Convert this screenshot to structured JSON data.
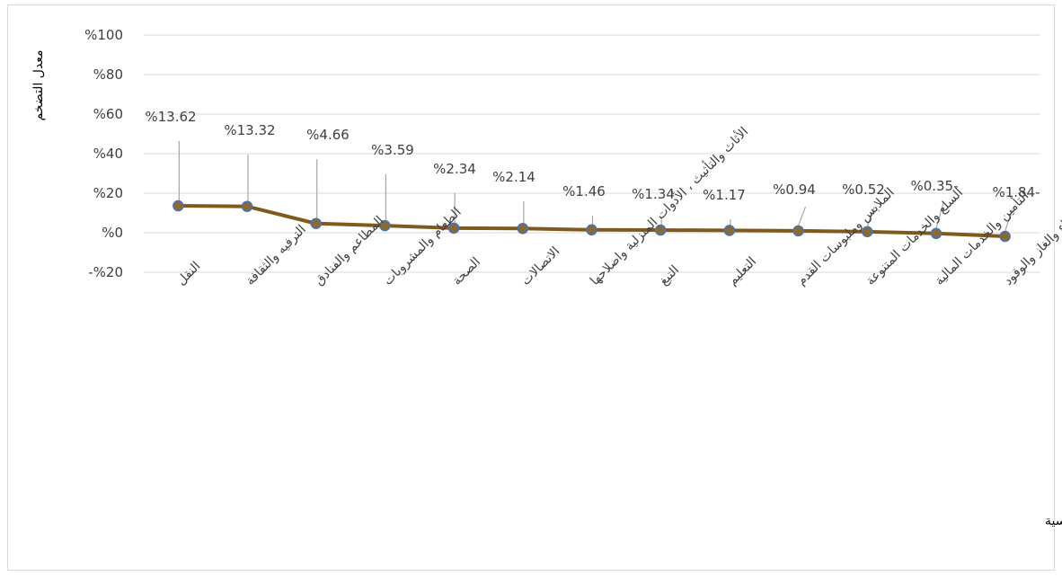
{
  "chart_data": {
    "type": "line",
    "ylabel": "معدل التضخم",
    "xlabel": "مجموعات الانفاق الرئيسية",
    "ylim": [
      -20,
      100
    ],
    "yticks": [
      -20,
      0,
      20,
      40,
      60,
      80,
      100
    ],
    "ytick_labels": [
      "-%20",
      "%0",
      "%20",
      "%40",
      "%60",
      "%80",
      "%100"
    ],
    "grid": true,
    "legend": "none",
    "categories": [
      "النقل",
      "الترفيه والثقافة",
      "المطاعم والفنادق",
      "الطعام والمشروبات",
      "الصحة",
      "الاتصالات",
      "الأثاث والتأثيث ، الأدوات المنزلية واصلاحها",
      "التبغ",
      "التعليم",
      "الملابس وملبوسات القدم",
      "السلع والخدمات المتنوعة",
      "التأمين والخدمات المالية",
      "السكن والمياه والكهرباء والغاز والوقود"
    ],
    "values": [
      13.62,
      13.32,
      4.66,
      3.59,
      2.34,
      2.14,
      1.46,
      1.34,
      1.17,
      0.94,
      0.52,
      -0.35,
      -1.84
    ],
    "data_labels": [
      "%13.62",
      "%13.32",
      "%4.66",
      "%3.59",
      "%2.34",
      "%2.14",
      "%1.46",
      "%1.34",
      "%1.17",
      "%0.94",
      "%0.52",
      "%0.35-",
      "%1.84-"
    ],
    "colors": {
      "line": "#7f5a1e",
      "marker_fill": "#8a6a2e",
      "marker_edge": "#4472c4",
      "grid": "#d9d9d9",
      "leader": "#a6a6a6"
    }
  }
}
